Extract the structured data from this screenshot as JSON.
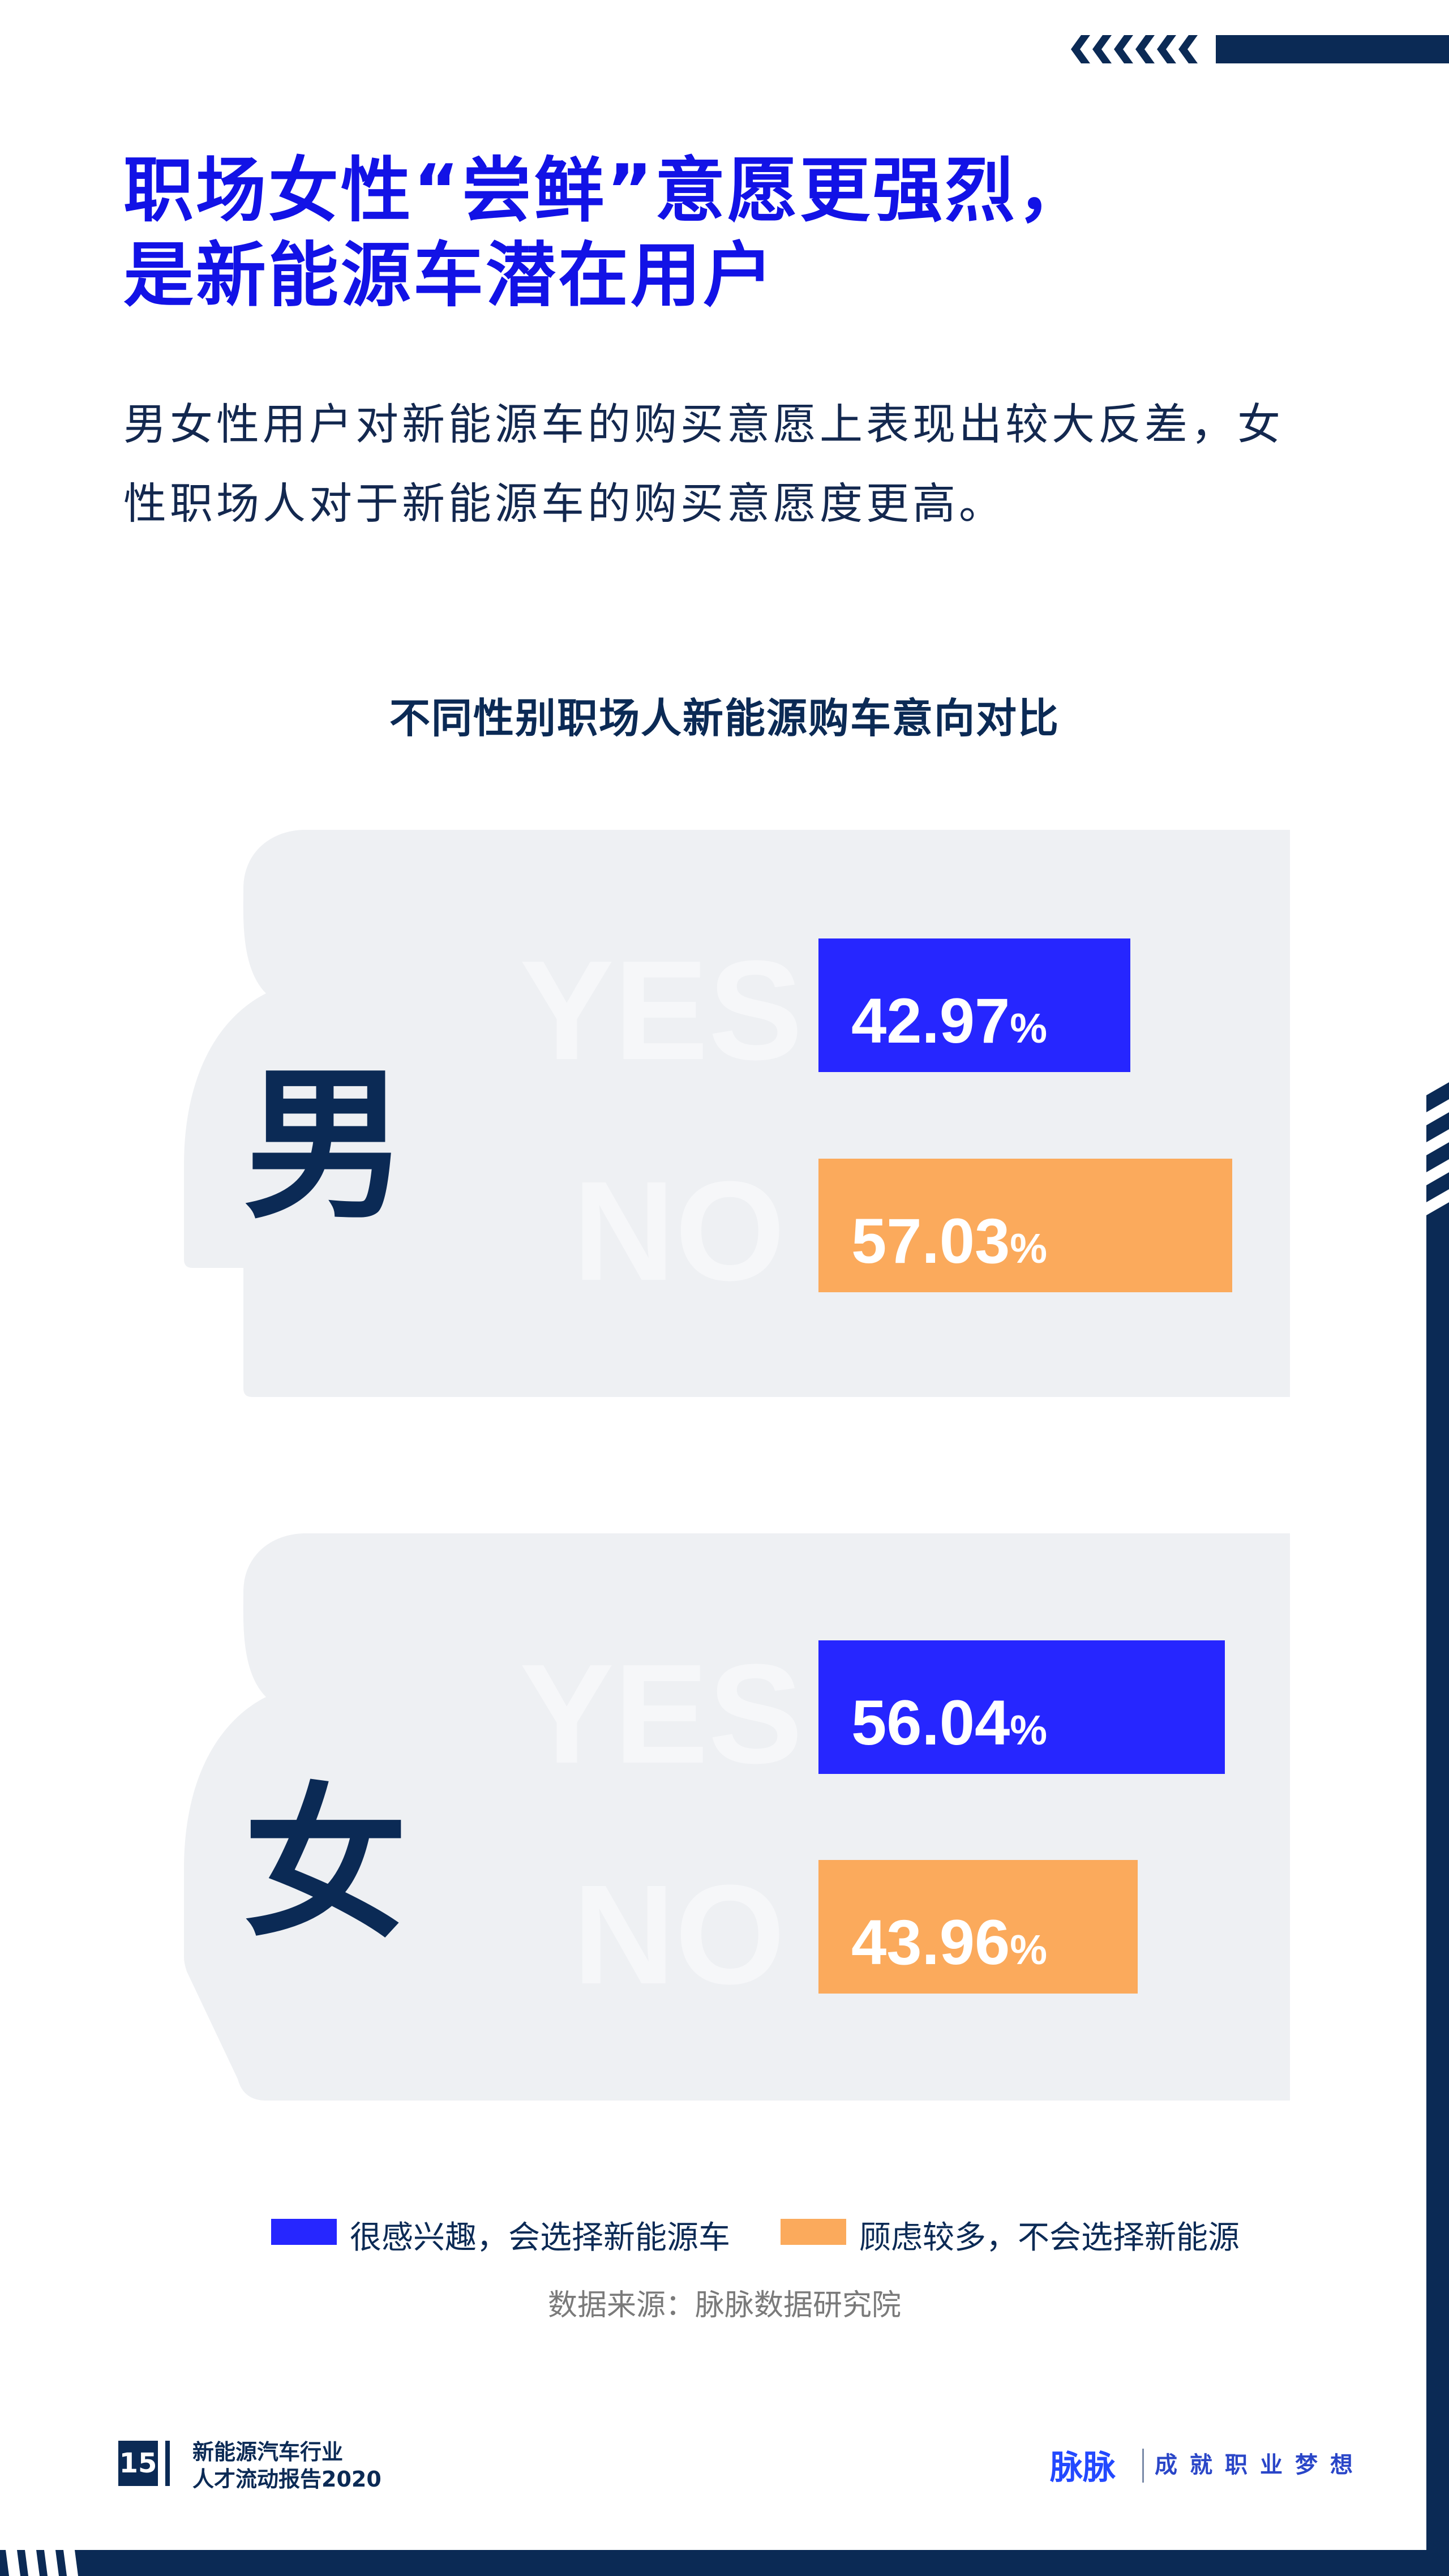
{
  "header": {
    "title_line1": "职场女性“尝鲜”意愿更强烈，",
    "title_line2": "是新能源车潜在用户",
    "paragraph_line1": "男女性用户对新能源车的购买意愿上表现出较大反差，女",
    "paragraph_line2": "性职场人对于新能源车的购买意愿度更高。"
  },
  "colors": {
    "yes": "#2626ff",
    "no": "#fbaa5c",
    "navy": "#0b2a55",
    "panel": "#eef0f3",
    "title": "#1212e6"
  },
  "chart_data": {
    "type": "bar",
    "orientation": "horizontal",
    "title": "不同性别职场人新能源购车意向对比",
    "categories": [
      "男",
      "女"
    ],
    "ghost_labels": [
      "YES",
      "NO"
    ],
    "unit": "%",
    "series": [
      {
        "name": "很感兴趣，会选择新能源车",
        "values": [
          42.97,
          56.04
        ],
        "color": "#2626ff"
      },
      {
        "name": "顾虑较多，不会选择新能源",
        "values": [
          57.03,
          43.96
        ],
        "color": "#fbaa5c"
      }
    ],
    "legend_position": "bottom",
    "grid": false
  },
  "display": {
    "male": {
      "label": "男",
      "yes": "42.97",
      "no": "57.03"
    },
    "female": {
      "label": "女",
      "yes": "56.04",
      "no": "43.96"
    },
    "pct": "%",
    "yes_word": "YES",
    "no_word": "NO"
  },
  "legend": {
    "yes": "很感兴趣，会选择新能源车",
    "no": "顾虑较多，不会选择新能源"
  },
  "source": "数据来源：脉脉数据研究院",
  "footer": {
    "page_number": "15",
    "report_line1": "新能源汽车行业",
    "report_line2": "人才流动报告2020",
    "logo": "脉脉",
    "slogan": "成就职业梦想"
  }
}
